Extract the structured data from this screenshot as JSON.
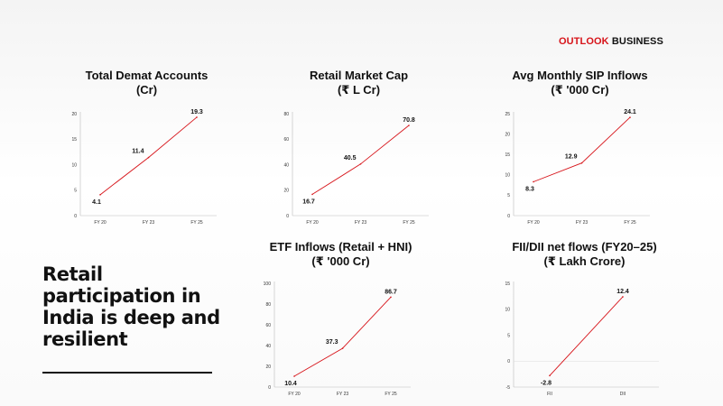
{
  "brand": {
    "part1": "OUTLOOK",
    "part2": " BUSINESS"
  },
  "headline": "Retail participation in India is deep and resilient",
  "colors": {
    "line": "#d7141a",
    "axis": "#bbbbbb"
  },
  "chart_data": [
    {
      "type": "line",
      "title": "Total Demat Accounts\n(Cr)",
      "categories": [
        "FY 20",
        "FY 23",
        "FY 25"
      ],
      "series": [
        {
          "values": [
            4.1,
            11.4,
            19.3
          ]
        }
      ],
      "ylim": [
        0,
        20
      ],
      "yticks": [
        0,
        5,
        10,
        15,
        20
      ],
      "grid": false
    },
    {
      "type": "line",
      "title": "Retail Market Cap\n(₹ L Cr)",
      "categories": [
        "FY 20",
        "FY 23",
        "FY 25"
      ],
      "series": [
        {
          "values": [
            16.7,
            40.5,
            70.8
          ]
        }
      ],
      "ylim": [
        0,
        80
      ],
      "yticks": [
        0,
        20,
        40,
        60,
        80
      ],
      "grid": false
    },
    {
      "type": "line",
      "title": "Avg Monthly SIP Inflows\n(₹ '000 Cr)",
      "categories": [
        "FY 20",
        "FY 23",
        "FY 25"
      ],
      "series": [
        {
          "values": [
            8.3,
            12.9,
            24.1
          ]
        }
      ],
      "ylim": [
        0,
        25
      ],
      "yticks": [
        0,
        5,
        10,
        15,
        20,
        25
      ],
      "grid": false
    },
    {
      "type": "line",
      "title": "ETF Inflows (Retail + HNI)\n(₹ '000 Cr)",
      "categories": [
        "FY 20",
        "FY 23",
        "FY 25"
      ],
      "series": [
        {
          "values": [
            10.4,
            37.3,
            86.7
          ]
        }
      ],
      "ylim": [
        0,
        100
      ],
      "yticks": [
        0,
        20,
        40,
        60,
        80,
        100
      ],
      "grid": false
    },
    {
      "type": "line",
      "title": "FII/DII net flows (FY20–25)\n(₹ Lakh Crore)",
      "categories": [
        "FII",
        "DII"
      ],
      "series": [
        {
          "values": [
            -2.8,
            12.4
          ]
        }
      ],
      "ylim": [
        -5,
        15
      ],
      "yticks": [
        -5,
        0,
        5,
        10,
        15
      ],
      "grid": false
    }
  ]
}
